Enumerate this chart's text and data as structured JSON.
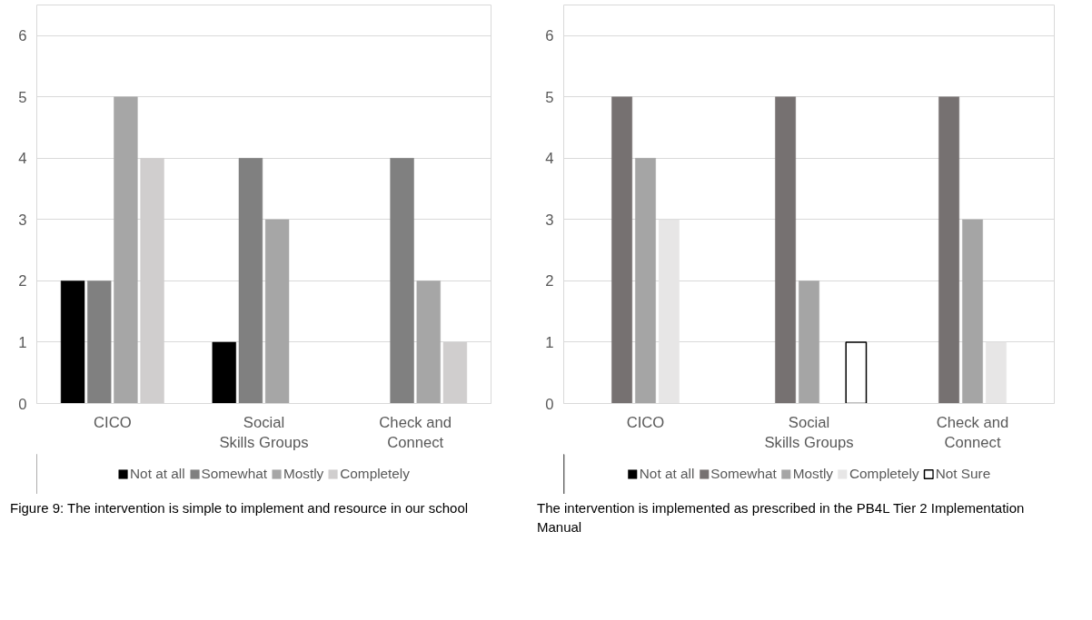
{
  "chart_data": [
    {
      "type": "bar",
      "categories": [
        "CICO",
        "Social Skills Groups",
        "Check and Connect"
      ],
      "ylim": [
        0,
        6.5
      ],
      "yticks": [
        0,
        1,
        2,
        3,
        4,
        5,
        6
      ],
      "grid": "y",
      "legend": "bottom",
      "series": [
        {
          "name": "Not at all",
          "color": "#000000",
          "values": [
            2,
            1,
            null
          ]
        },
        {
          "name": "Somewhat",
          "color": "#808080",
          "values": [
            2,
            4,
            4
          ]
        },
        {
          "name": "Mostly",
          "color": "#a6a6a6",
          "values": [
            5,
            3,
            2
          ]
        },
        {
          "name": "Completely",
          "color": "#d0cece",
          "values": [
            4,
            null,
            1
          ]
        }
      ],
      "annotations": [
        "Figure 9: The intervention is simple to implement and resource in our school"
      ]
    },
    {
      "type": "bar",
      "categories": [
        "CICO",
        "Social Skills Groups",
        "Check and Connect"
      ],
      "ylim": [
        0,
        6.5
      ],
      "yticks": [
        0,
        1,
        2,
        3,
        4,
        5,
        6
      ],
      "grid": "y",
      "legend": "bottom",
      "series": [
        {
          "name": "Not at all",
          "color": "#000000",
          "values": [
            null,
            null,
            null
          ]
        },
        {
          "name": "Somewhat",
          "color": "#767171",
          "values": [
            5,
            5,
            5
          ]
        },
        {
          "name": "Mostly",
          "color": "#a5a5a5",
          "values": [
            4,
            2,
            3
          ]
        },
        {
          "name": "Completely",
          "color": "#e7e6e6",
          "values": [
            3,
            null,
            1
          ]
        },
        {
          "name": "Not Sure",
          "color": "#ffffff",
          "values": [
            null,
            1,
            null
          ]
        }
      ],
      "annotations": [
        "The intervention is implemented as prescribed in the PB4L Tier 2 Implementation Manual"
      ]
    }
  ]
}
